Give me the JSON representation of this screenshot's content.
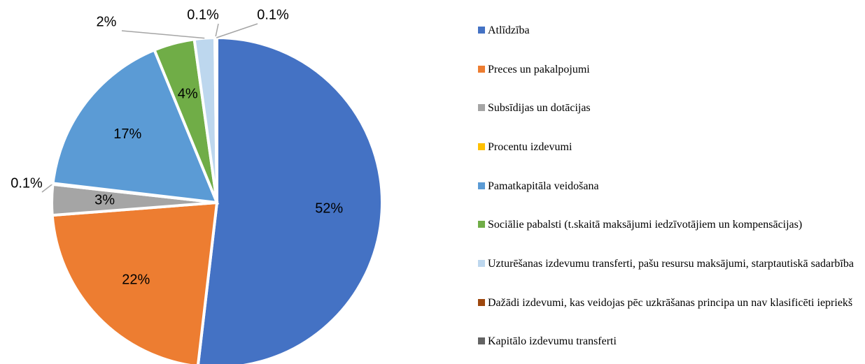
{
  "chart_data": {
    "type": "pie",
    "categories": [
      "Atlīdzība",
      "Preces un pakalpojumi",
      "Subsīdijas un dotācijas",
      "Procentu izdevumi",
      "Pamatkapitāla veidošana",
      "Sociālie pabalsti (t.skaitā maksājumi iedzīvotājiem un kompensācijas)",
      "Uzturēšanas izdevumu transferti, pašu resursu maksājumi, starptautiskā sadarbība",
      "Dažādi izdevumi, kas veidojas pēc uzkrāšanas principa un nav klasificēti iepriekš",
      "Kapitālo izdevumu transferti"
    ],
    "values": [
      52,
      22,
      3,
      0.1,
      17,
      4,
      2,
      0.1,
      0.1
    ],
    "value_labels": [
      "52%",
      "22%",
      "3%",
      "0.1%",
      "17%",
      "4%",
      "2%",
      "0.1%",
      "0.1%"
    ],
    "colors": [
      "#4472c4",
      "#ed7d31",
      "#a5a5a5",
      "#ffc000",
      "#5b9bd5",
      "#70ad47",
      "#bdd7ee",
      "#9e480e",
      "#636363"
    ],
    "legend": "right"
  }
}
